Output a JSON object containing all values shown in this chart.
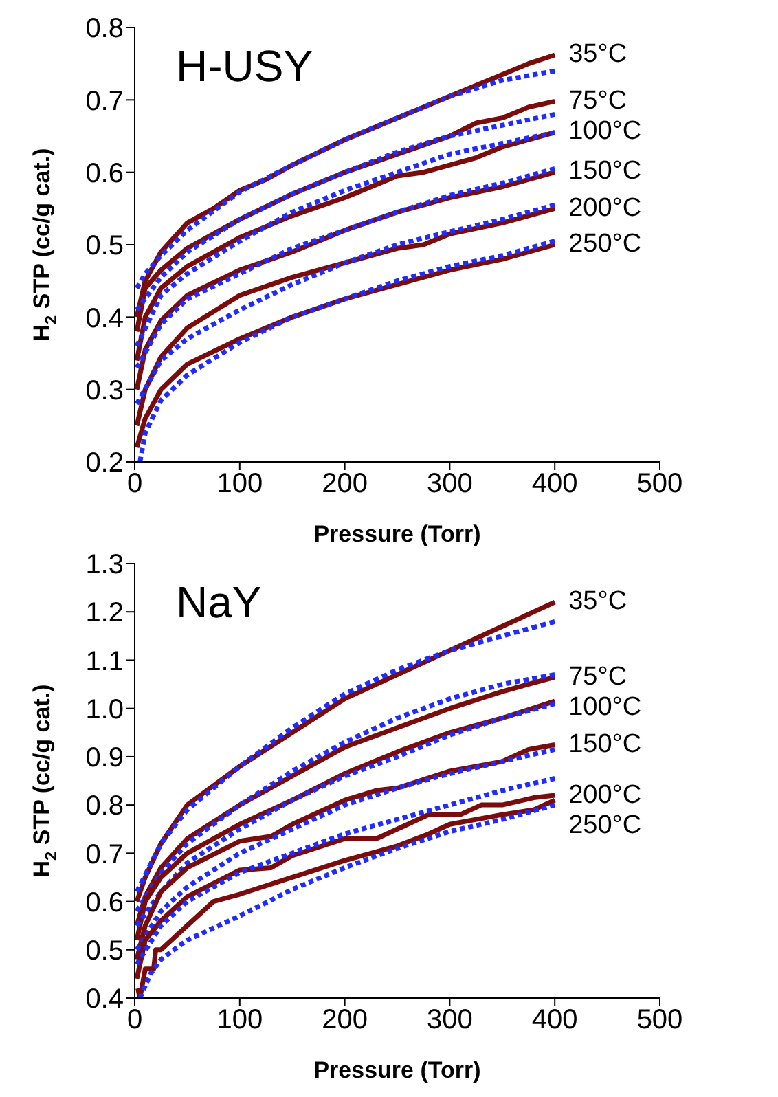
{
  "chart_data": [
    {
      "type": "line",
      "title": "H-USY",
      "xlabel": "Pressure (Torr)",
      "ylabel": "H$_{2}$ STP (cc/g cat.)",
      "xlim": [
        0,
        500
      ],
      "xticks": [
        0,
        100,
        200,
        300,
        400,
        500
      ],
      "ylim": [
        0.2,
        0.8
      ],
      "yticks": [
        0.2,
        0.3,
        0.4,
        0.5,
        0.6,
        0.7,
        0.8
      ],
      "marker": "none",
      "series": [
        {
          "name": "35°C",
          "color": "#7b0c0c",
          "line_style": "solid",
          "x": [
            2,
            10,
            25,
            50,
            75,
            100,
            125,
            150,
            200,
            250,
            300,
            350,
            375,
            400
          ],
          "values": [
            0.4,
            0.45,
            0.49,
            0.53,
            0.55,
            0.575,
            0.59,
            0.61,
            0.645,
            0.675,
            0.705,
            0.735,
            0.75,
            0.762
          ]
        },
        {
          "color": "#1f2bff",
          "line_style": "dashed",
          "x": [
            2,
            10,
            25,
            50,
            100,
            150,
            200,
            250,
            300,
            350,
            400
          ],
          "values": [
            0.44,
            0.46,
            0.485,
            0.52,
            0.573,
            0.61,
            0.645,
            0.675,
            0.705,
            0.727,
            0.74
          ]
        },
        {
          "name": "75°C",
          "color": "#7b0c0c",
          "line_style": "solid",
          "x": [
            2,
            10,
            25,
            50,
            100,
            150,
            200,
            250,
            300,
            325,
            350,
            375,
            400
          ],
          "values": [
            0.38,
            0.44,
            0.465,
            0.495,
            0.535,
            0.57,
            0.6,
            0.625,
            0.65,
            0.668,
            0.675,
            0.69,
            0.698
          ]
        },
        {
          "color": "#1f2bff",
          "line_style": "dashed",
          "x": [
            2,
            25,
            50,
            100,
            150,
            200,
            250,
            300,
            350,
            400
          ],
          "values": [
            0.41,
            0.455,
            0.49,
            0.535,
            0.57,
            0.6,
            0.628,
            0.65,
            0.665,
            0.68
          ]
        },
        {
          "name": "100°C",
          "color": "#7b0c0c",
          "line_style": "solid",
          "x": [
            2,
            10,
            25,
            50,
            100,
            150,
            200,
            250,
            275,
            300,
            325,
            350,
            400
          ],
          "values": [
            0.34,
            0.4,
            0.44,
            0.47,
            0.51,
            0.54,
            0.565,
            0.595,
            0.6,
            0.61,
            0.62,
            0.635,
            0.655
          ]
        },
        {
          "color": "#1f2bff",
          "line_style": "dashed",
          "x": [
            2,
            25,
            50,
            100,
            150,
            200,
            250,
            300,
            350,
            400
          ],
          "values": [
            0.36,
            0.43,
            0.46,
            0.505,
            0.545,
            0.575,
            0.6,
            0.625,
            0.64,
            0.655
          ]
        },
        {
          "name": "150°C",
          "color": "#7b0c0c",
          "line_style": "solid",
          "x": [
            2,
            10,
            25,
            50,
            100,
            150,
            200,
            250,
            300,
            350,
            400
          ],
          "values": [
            0.3,
            0.355,
            0.395,
            0.43,
            0.465,
            0.49,
            0.52,
            0.545,
            0.565,
            0.58,
            0.6
          ]
        },
        {
          "color": "#1f2bff",
          "line_style": "dashed",
          "x": [
            2,
            25,
            50,
            100,
            150,
            200,
            250,
            300,
            350,
            400
          ],
          "values": [
            0.33,
            0.39,
            0.425,
            0.46,
            0.495,
            0.52,
            0.545,
            0.568,
            0.585,
            0.605
          ]
        },
        {
          "name": "200°C",
          "color": "#7b0c0c",
          "line_style": "solid",
          "x": [
            2,
            10,
            25,
            50,
            100,
            150,
            200,
            250,
            275,
            300,
            350,
            400
          ],
          "values": [
            0.25,
            0.3,
            0.345,
            0.385,
            0.43,
            0.455,
            0.475,
            0.495,
            0.5,
            0.515,
            0.53,
            0.55
          ]
        },
        {
          "color": "#1f2bff",
          "line_style": "dashed",
          "x": [
            2,
            25,
            50,
            100,
            150,
            200,
            250,
            300,
            350,
            400
          ],
          "values": [
            0.28,
            0.34,
            0.37,
            0.41,
            0.445,
            0.475,
            0.5,
            0.518,
            0.535,
            0.555
          ]
        },
        {
          "name": "250°C",
          "color": "#7b0c0c",
          "line_style": "solid",
          "x": [
            2,
            10,
            25,
            50,
            100,
            150,
            200,
            250,
            300,
            350,
            400
          ],
          "values": [
            0.22,
            0.26,
            0.3,
            0.335,
            0.37,
            0.4,
            0.425,
            0.445,
            0.465,
            0.48,
            0.5
          ]
        },
        {
          "color": "#1f2bff",
          "line_style": "dashed",
          "x": [
            5,
            10,
            25,
            50,
            100,
            150,
            200,
            250,
            300,
            350,
            400
          ],
          "values": [
            0.2,
            0.24,
            0.285,
            0.32,
            0.365,
            0.4,
            0.425,
            0.45,
            0.47,
            0.485,
            0.505
          ]
        }
      ]
    },
    {
      "type": "line",
      "title": "NaY",
      "xlabel": "Pressure (Torr)",
      "ylabel": "H$_{2}$ STP (cc/g cat.)",
      "xlim": [
        0,
        500
      ],
      "xticks": [
        0,
        100,
        200,
        300,
        400,
        500
      ],
      "ylim": [
        0.4,
        1.3
      ],
      "yticks": [
        {
          "value": 0.4,
          "label": "0.4"
        },
        {
          "value": 0.5,
          "label": "0.5"
        },
        {
          "value": 0.6,
          "label": "0.6"
        },
        {
          "value": 0.7,
          "label": "0.7"
        },
        {
          "value": 0.8,
          "label": "0.8"
        },
        {
          "value": 0.9,
          "label": "0.9"
        },
        {
          "value": 1.0,
          "label": "1.0"
        },
        {
          "value": 1.1,
          "label": "1.1"
        },
        {
          "value": 1.2,
          "label": "1.2"
        },
        {
          "value": 1.3,
          "label": "1.3"
        }
      ],
      "marker": "none",
      "series": [
        {
          "name": "35°C",
          "color": "#7b0c0c",
          "line_style": "solid",
          "x": [
            2,
            10,
            25,
            50,
            75,
            100,
            150,
            200,
            250,
            300,
            350,
            400
          ],
          "values": [
            0.6,
            0.65,
            0.72,
            0.8,
            0.84,
            0.88,
            0.95,
            1.02,
            1.07,
            1.12,
            1.17,
            1.22
          ]
        },
        {
          "color": "#1f2bff",
          "line_style": "dashed",
          "x": [
            2,
            25,
            50,
            100,
            150,
            200,
            250,
            300,
            350,
            400
          ],
          "values": [
            0.62,
            0.72,
            0.79,
            0.88,
            0.96,
            1.03,
            1.08,
            1.12,
            1.15,
            1.18
          ]
        },
        {
          "name": "75°C",
          "color": "#7b0c0c",
          "line_style": "solid",
          "x": [
            2,
            10,
            25,
            50,
            100,
            150,
            200,
            250,
            300,
            350,
            400
          ],
          "values": [
            0.55,
            0.61,
            0.67,
            0.73,
            0.8,
            0.86,
            0.92,
            0.96,
            1.0,
            1.035,
            1.065
          ]
        },
        {
          "color": "#1f2bff",
          "line_style": "dashed",
          "x": [
            2,
            25,
            50,
            100,
            150,
            200,
            250,
            300,
            350,
            400
          ],
          "values": [
            0.58,
            0.66,
            0.72,
            0.8,
            0.87,
            0.93,
            0.98,
            1.02,
            1.05,
            1.07
          ]
        },
        {
          "name": "100°C",
          "color": "#7b0c0c",
          "line_style": "solid",
          "x": [
            2,
            10,
            25,
            50,
            100,
            150,
            200,
            250,
            300,
            350,
            400
          ],
          "values": [
            0.52,
            0.6,
            0.65,
            0.7,
            0.76,
            0.81,
            0.865,
            0.91,
            0.95,
            0.98,
            1.015
          ]
        },
        {
          "color": "#1f2bff",
          "line_style": "dashed",
          "x": [
            2,
            25,
            50,
            100,
            150,
            200,
            250,
            300,
            350,
            400
          ],
          "values": [
            0.55,
            0.62,
            0.68,
            0.75,
            0.81,
            0.86,
            0.9,
            0.945,
            0.98,
            1.01
          ]
        },
        {
          "name": "150°C",
          "color": "#7b0c0c",
          "line_style": "solid",
          "x": [
            2,
            10,
            25,
            50,
            100,
            130,
            150,
            200,
            230,
            250,
            300,
            350,
            375,
            400
          ],
          "values": [
            0.48,
            0.55,
            0.62,
            0.67,
            0.725,
            0.735,
            0.76,
            0.81,
            0.83,
            0.835,
            0.87,
            0.89,
            0.915,
            0.925
          ]
        },
        {
          "color": "#1f2bff",
          "line_style": "dashed",
          "x": [
            2,
            25,
            50,
            100,
            150,
            200,
            250,
            300,
            350,
            400
          ],
          "values": [
            0.5,
            0.58,
            0.63,
            0.7,
            0.75,
            0.8,
            0.835,
            0.865,
            0.89,
            0.915
          ]
        },
        {
          "name": "200°C",
          "color": "#7b0c0c",
          "line_style": "solid",
          "x": [
            2,
            10,
            25,
            50,
            100,
            130,
            150,
            200,
            230,
            260,
            280,
            310,
            330,
            350,
            380,
            400
          ],
          "values": [
            0.44,
            0.52,
            0.56,
            0.61,
            0.665,
            0.67,
            0.695,
            0.73,
            0.73,
            0.76,
            0.78,
            0.78,
            0.8,
            0.8,
            0.815,
            0.82
          ]
        },
        {
          "color": "#1f2bff",
          "line_style": "dashed",
          "x": [
            2,
            25,
            50,
            100,
            150,
            200,
            250,
            300,
            350,
            400
          ],
          "values": [
            0.47,
            0.55,
            0.6,
            0.66,
            0.7,
            0.74,
            0.77,
            0.8,
            0.83,
            0.855
          ]
        },
        {
          "name": "250°C",
          "color": "#7b0c0c",
          "line_style": "solid",
          "x": [
            3,
            5,
            10,
            18,
            20,
            25,
            50,
            75,
            100,
            150,
            200,
            250,
            280,
            300,
            350,
            380,
            400
          ],
          "values": [
            0.42,
            0.4,
            0.46,
            0.46,
            0.5,
            0.5,
            0.55,
            0.6,
            0.615,
            0.65,
            0.685,
            0.715,
            0.74,
            0.76,
            0.78,
            0.79,
            0.81
          ]
        },
        {
          "color": "#1f2bff",
          "line_style": "dashed",
          "x": [
            5,
            15,
            25,
            50,
            100,
            150,
            200,
            250,
            300,
            350,
            400
          ],
          "values": [
            0.4,
            0.45,
            0.48,
            0.52,
            0.57,
            0.625,
            0.67,
            0.71,
            0.745,
            0.77,
            0.8
          ]
        }
      ]
    }
  ]
}
